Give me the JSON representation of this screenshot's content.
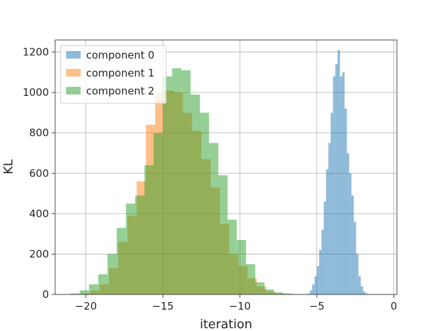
{
  "chart_data": {
    "type": "histogram",
    "title": "",
    "xlabel": "iteration",
    "ylabel": "KL",
    "xlim": [
      -22,
      0.2
    ],
    "ylim": [
      0,
      1260
    ],
    "x_ticks": [
      -20,
      -15,
      -10,
      -5,
      0
    ],
    "x_tick_labels": [
      "−20",
      "−15",
      "−10",
      "−5",
      "0"
    ],
    "y_ticks": [
      0,
      200,
      400,
      600,
      800,
      1000,
      1200
    ],
    "y_tick_labels": [
      "0",
      "200",
      "400",
      "600",
      "800",
      "1000",
      "1200"
    ],
    "grid": true,
    "legend_position": "top-left",
    "series": [
      {
        "name": "component 0",
        "color": "#1f77b4",
        "alpha": 0.5,
        "bin_start": -5.6,
        "bin_width": 0.15,
        "counts": [
          5,
          20,
          50,
          90,
          140,
          220,
          320,
          460,
          620,
          750,
          900,
          1080,
          1140,
          1210,
          1080,
          1100,
          920,
          700,
          600,
          490,
          360,
          200,
          90,
          40,
          15,
          5
        ]
      },
      {
        "name": "component 1",
        "color": "#ff7f0e",
        "alpha": 0.5,
        "bin_start": -20.3,
        "bin_width": 0.6,
        "counts": [
          5,
          20,
          50,
          130,
          260,
          390,
          560,
          840,
          1000,
          1010,
          1000,
          900,
          810,
          670,
          530,
          350,
          200,
          140,
          80,
          40,
          15,
          5
        ]
      },
      {
        "name": "component 2",
        "color": "#2ca02c",
        "alpha": 0.5,
        "bin_start": -21.0,
        "bin_width": 0.6,
        "counts": [
          5,
          20,
          50,
          100,
          200,
          330,
          450,
          490,
          640,
          800,
          1080,
          1120,
          1110,
          990,
          900,
          750,
          590,
          370,
          270,
          150,
          60,
          25,
          10,
          5
        ]
      }
    ]
  }
}
